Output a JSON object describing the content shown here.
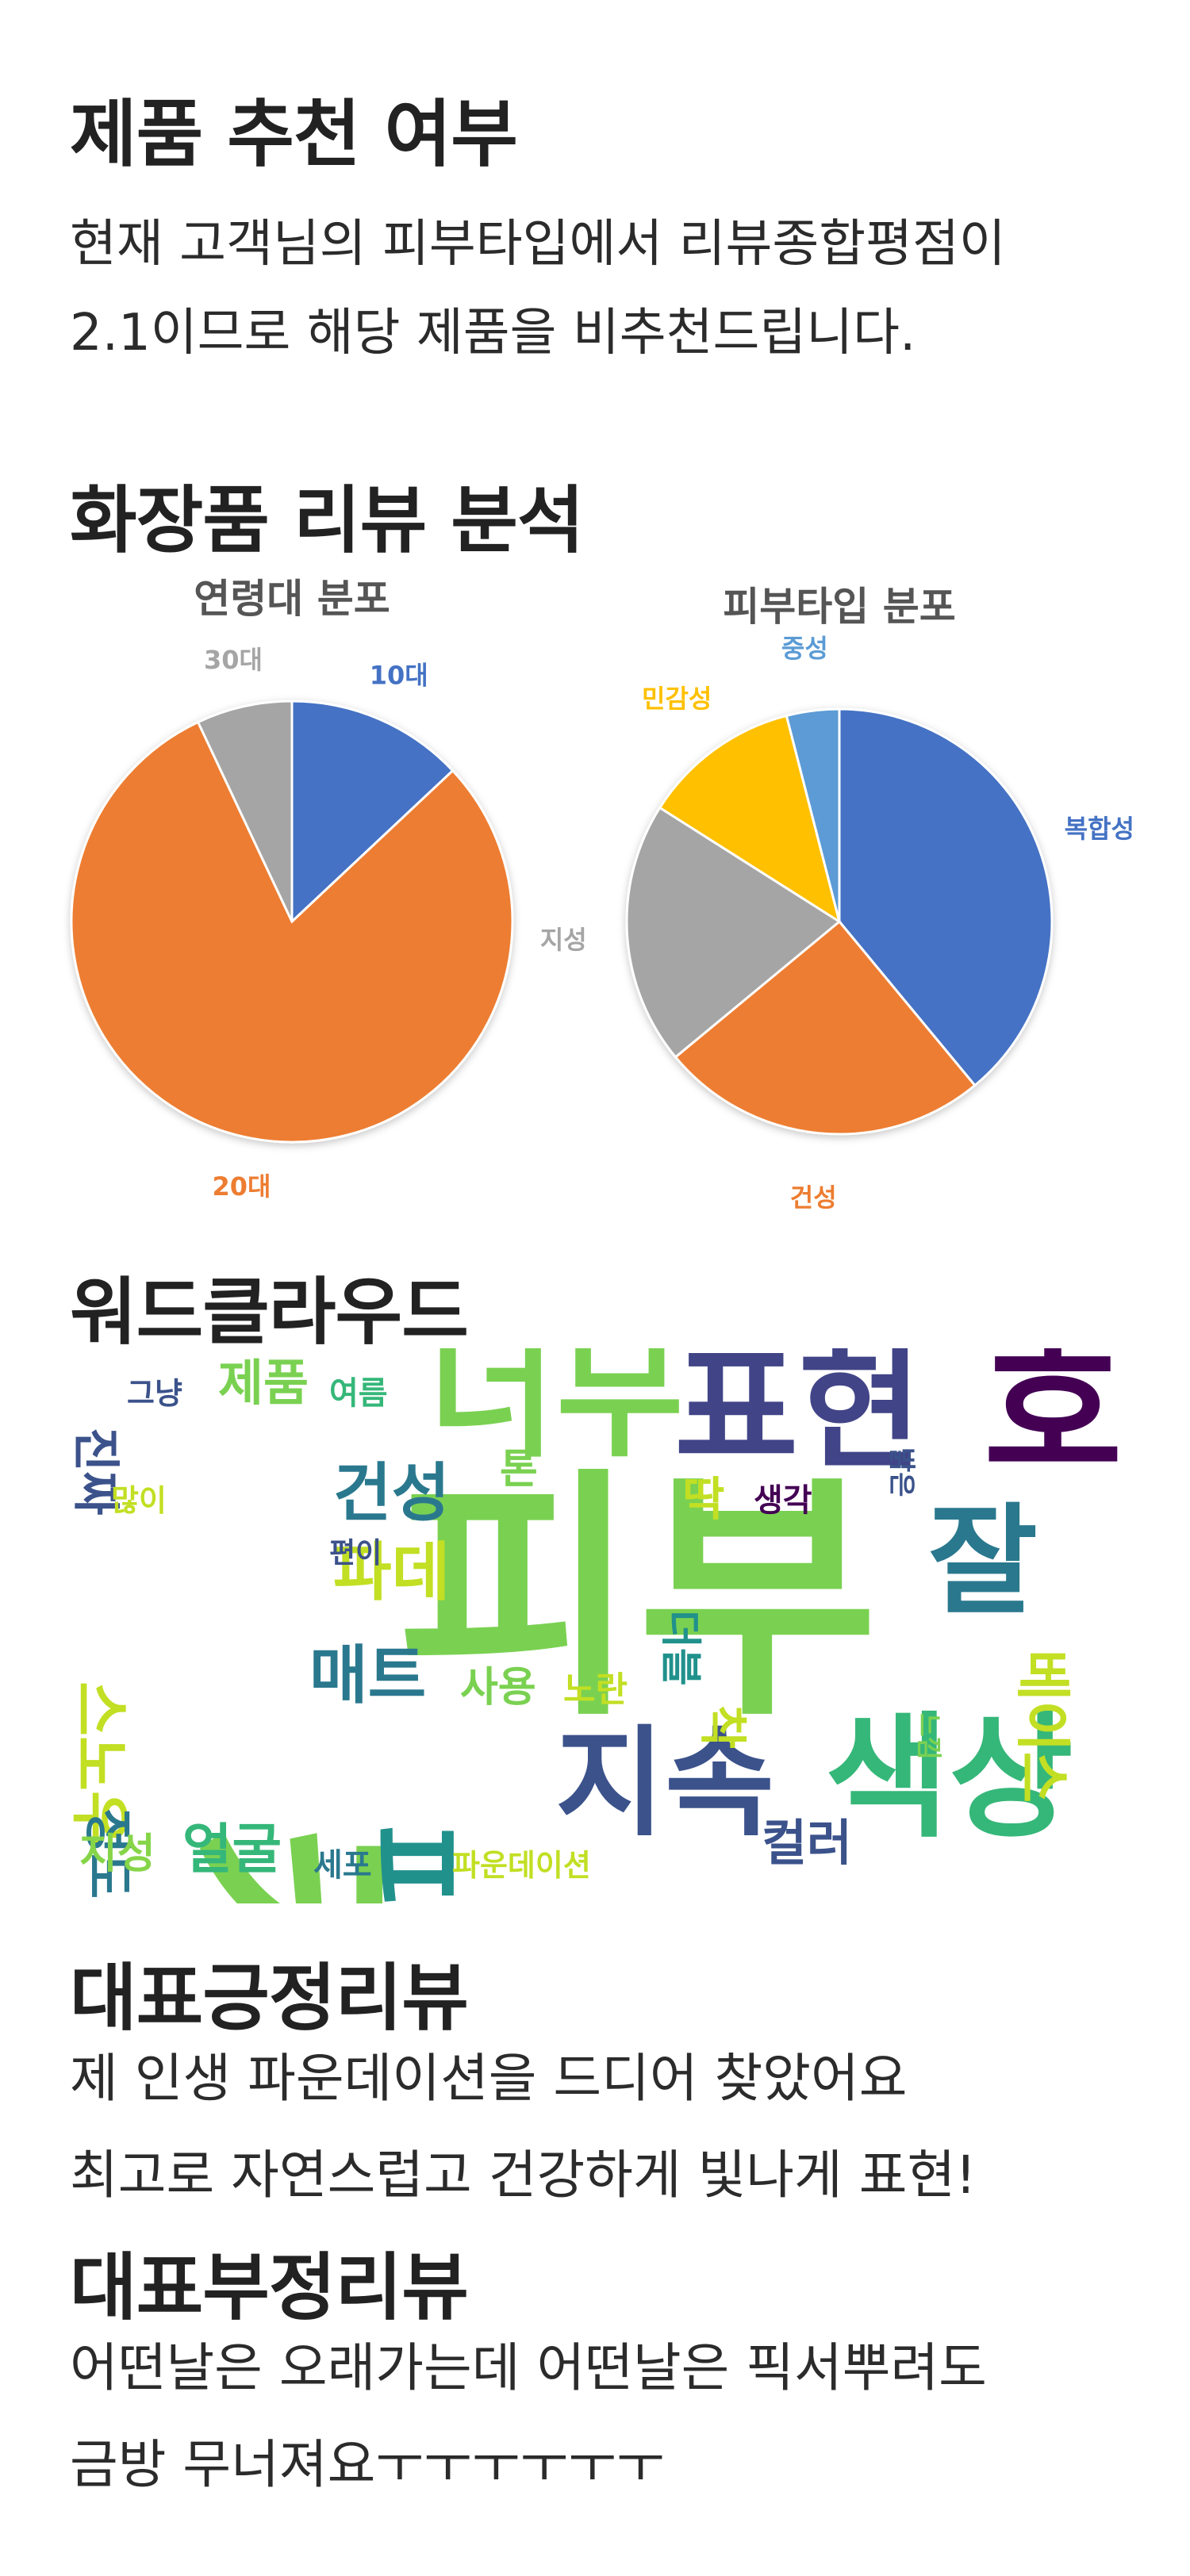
{
  "recommendation": {
    "title": "제품 추천 여부",
    "message_lines": [
      "현재 고객님의 피부타입에서 리뷰종합평점이",
      "2.1이므로 해당 제품을 비추천드립니다."
    ]
  },
  "analysis": {
    "title": "화장품 리뷰 분석"
  },
  "chart_data": [
    {
      "type": "pie",
      "title": "연령대 분포",
      "categories": [
        "10대",
        "20대",
        "30대"
      ],
      "values": [
        13,
        80,
        7
      ],
      "colors": [
        "#4472C4",
        "#ED7D31",
        "#A5A5A5"
      ],
      "start": "12-o'clock",
      "direction": "clockwise",
      "legend": "none"
    },
    {
      "type": "pie",
      "title": "피부타입 분포",
      "categories": [
        "복합성",
        "건성",
        "지성",
        "민감성",
        "중성"
      ],
      "values": [
        39,
        25,
        20,
        12,
        4
      ],
      "colors": [
        "#4472C4",
        "#ED7D31",
        "#A5A5A5",
        "#FFC000",
        "#5B9BD5"
      ],
      "start": "12-o'clock",
      "direction": "clockwise",
      "legend": "none"
    }
  ],
  "wordcloud": {
    "title": "워드클라우드",
    "words": [
      {
        "text": "피부",
        "color": "#7AD151"
      },
      {
        "text": "커버",
        "color": "#7AD151"
      },
      {
        "text": "너무",
        "color": "#7AD151"
      },
      {
        "text": "표현",
        "color": "#414487"
      },
      {
        "text": "호",
        "color": "#440154"
      },
      {
        "text": "잘",
        "color": "#2A788E"
      },
      {
        "text": "색상",
        "color": "#35B779"
      },
      {
        "text": "지속",
        "color": "#3B528B"
      },
      {
        "text": "피",
        "color": "#21918C"
      },
      {
        "text": "매트",
        "color": "#2A788E"
      },
      {
        "text": "파데",
        "color": "#C2DF23"
      },
      {
        "text": "건성",
        "color": "#2A788E"
      },
      {
        "text": "제품",
        "color": "#7AD151"
      },
      {
        "text": "진짜",
        "color": "#3B528B"
      },
      {
        "text": "스노우",
        "color": "#C2DF23"
      },
      {
        "text": "정도",
        "color": "#2A788E"
      },
      {
        "text": "얼굴",
        "color": "#35B779"
      },
      {
        "text": "지성",
        "color": "#86D549"
      },
      {
        "text": "세포",
        "color": "#2A788E"
      },
      {
        "text": "파운데이션",
        "color": "#C2DF23"
      },
      {
        "text": "컬러",
        "color": "#3B528B"
      },
      {
        "text": "베이스",
        "color": "#C2DF23"
      },
      {
        "text": "사용",
        "color": "#7AD151"
      },
      {
        "text": "노란",
        "color": "#C2DF23"
      },
      {
        "text": "톤",
        "color": "#7AD151"
      },
      {
        "text": "편이",
        "color": "#3B528B"
      },
      {
        "text": "그냥",
        "color": "#3B528B"
      },
      {
        "text": "여름",
        "color": "#35B779"
      },
      {
        "text": "많이",
        "color": "#C2DF23"
      },
      {
        "text": "생각",
        "color": "#440154"
      },
      {
        "text": "딱",
        "color": "#C2DF23"
      },
      {
        "text": "더블",
        "color": "#21918C"
      },
      {
        "text": "밝은",
        "color": "#3B528B"
      },
      {
        "text": "느낌",
        "color": "#7AD151"
      },
      {
        "text": "착",
        "color": "#C2DF23"
      }
    ]
  },
  "positive_review": {
    "title": "대표긍정리뷰",
    "lines": [
      "제 인생 파운데이션을 드디어 찾았어요",
      "최고로 자연스럽고 건강하게 빛나게 표현!"
    ]
  },
  "negative_review": {
    "title": "대표부정리뷰",
    "lines": [
      "어떤날은 오래가는데 어떤날은 픽서뿌려도",
      "금방 무너져요ㅜㅜㅜㅜㅜㅜ"
    ]
  }
}
